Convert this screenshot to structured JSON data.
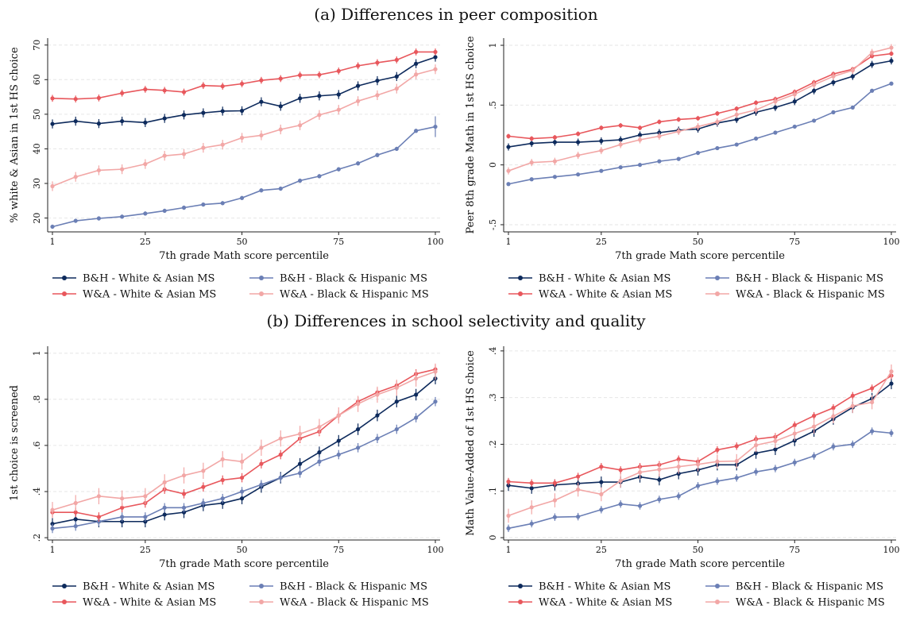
{
  "sections": {
    "a_title": "(a) Differences in peer composition",
    "b_title": "(b) Differences in school selectivity and quality"
  },
  "legend_entries": [
    {
      "label": "B&H - White & Asian MS",
      "color": "#0d2a5c"
    },
    {
      "label": "B&H - Black & Hispanic MS",
      "color": "#6b7fb5"
    },
    {
      "label": "W&A - White & Asian MS",
      "color": "#e8575c"
    },
    {
      "label": "W&A - Black & Hispanic MS",
      "color": "#f2a7a6"
    }
  ],
  "chart_data": [
    {
      "type": "line",
      "xlabel": "7th grade Math score percentile",
      "ylabel": "% white & Asian in 1st HS choice",
      "x": [
        1,
        7,
        13,
        19,
        25,
        30,
        35,
        40,
        45,
        50,
        55,
        60,
        65,
        70,
        75,
        80,
        85,
        90,
        95,
        100
      ],
      "xticks": [
        1,
        25,
        50,
        75,
        100
      ],
      "xtick_labels": [
        "1",
        "25",
        "50",
        "75",
        "100"
      ],
      "ylim": [
        16,
        72
      ],
      "yticks": [
        20,
        30,
        40,
        50,
        60,
        70
      ],
      "ytick_labels": [
        "20",
        "30",
        "40",
        "50",
        "60",
        "70"
      ],
      "series": [
        {
          "name": "B&H - White & Asian MS",
          "color": "#0d2a5c",
          "err": 1.3,
          "values": [
            47.2,
            48.0,
            47.3,
            48.0,
            47.6,
            48.8,
            49.8,
            50.4,
            50.9,
            51.0,
            53.6,
            52.3,
            54.6,
            55.3,
            55.7,
            58.2,
            59.7,
            60.9,
            64.6,
            66.5
          ]
        },
        {
          "name": "B&H - Black & Hispanic MS",
          "color": "#6b7fb5",
          "err": 0.6,
          "values": [
            17.5,
            19.2,
            19.9,
            20.4,
            21.3,
            22.1,
            23.0,
            23.9,
            24.3,
            25.8,
            28.0,
            28.5,
            30.8,
            32.1,
            34.1,
            35.8,
            38.2,
            40.0,
            45.2,
            46.4
          ],
          "err_last": 3.0
        },
        {
          "name": "W&A - White & Asian MS",
          "color": "#e8575c",
          "err": 1.0,
          "values": [
            54.6,
            54.4,
            54.7,
            56.1,
            57.2,
            56.9,
            56.4,
            58.3,
            58.1,
            58.8,
            59.8,
            60.3,
            61.3,
            61.4,
            62.5,
            64.0,
            64.9,
            65.7,
            68.0,
            68.0
          ]
        },
        {
          "name": "W&A - Black & Hispanic MS",
          "color": "#f2a7a6",
          "err": 1.4,
          "values": [
            29.2,
            31.9,
            33.8,
            34.1,
            35.6,
            38.0,
            38.5,
            40.3,
            41.2,
            43.2,
            43.9,
            45.6,
            46.8,
            49.8,
            51.3,
            53.8,
            55.5,
            57.4,
            61.5,
            63.0
          ]
        }
      ]
    },
    {
      "type": "line",
      "xlabel": "7th grade Math score percentile",
      "ylabel": "Peer 8th grade Math in 1st HS choice",
      "x": [
        1,
        7,
        13,
        19,
        25,
        30,
        35,
        40,
        45,
        50,
        55,
        60,
        65,
        70,
        75,
        80,
        85,
        90,
        95,
        100
      ],
      "xticks": [
        1,
        25,
        50,
        75,
        100
      ],
      "xtick_labels": [
        "1",
        "25",
        "50",
        "75",
        "100"
      ],
      "ylim": [
        -0.56,
        1.06
      ],
      "yticks": [
        -0.5,
        0,
        0.5,
        1
      ],
      "ytick_labels": [
        "-.5",
        "0",
        ".5",
        "1"
      ],
      "series": [
        {
          "name": "B&H - White & Asian MS",
          "color": "#0d2a5c",
          "err": 0.03,
          "values": [
            0.15,
            0.18,
            0.19,
            0.19,
            0.2,
            0.21,
            0.25,
            0.27,
            0.29,
            0.3,
            0.35,
            0.38,
            0.44,
            0.48,
            0.53,
            0.62,
            0.69,
            0.74,
            0.84,
            0.87
          ]
        },
        {
          "name": "B&H - Black & Hispanic MS",
          "color": "#6b7fb5",
          "err": 0.015,
          "values": [
            -0.16,
            -0.12,
            -0.1,
            -0.08,
            -0.05,
            -0.02,
            0.0,
            0.03,
            0.05,
            0.1,
            0.14,
            0.17,
            0.22,
            0.27,
            0.32,
            0.37,
            0.44,
            0.48,
            0.62,
            0.68
          ]
        },
        {
          "name": "W&A - White & Asian MS",
          "color": "#e8575c",
          "err": 0.02,
          "values": [
            0.24,
            0.22,
            0.23,
            0.26,
            0.31,
            0.33,
            0.31,
            0.36,
            0.38,
            0.39,
            0.43,
            0.47,
            0.52,
            0.55,
            0.61,
            0.69,
            0.76,
            0.8,
            0.91,
            0.93
          ]
        },
        {
          "name": "W&A - Black & Hispanic MS",
          "color": "#f2a7a6",
          "err": 0.03,
          "values": [
            -0.05,
            0.02,
            0.03,
            0.08,
            0.12,
            0.17,
            0.21,
            0.24,
            0.28,
            0.32,
            0.36,
            0.42,
            0.46,
            0.53,
            0.59,
            0.67,
            0.74,
            0.79,
            0.94,
            0.98
          ]
        }
      ]
    },
    {
      "type": "line",
      "xlabel": "7th grade Math score percentile",
      "ylabel": "1st choice is screened",
      "x": [
        1,
        7,
        13,
        19,
        25,
        30,
        35,
        40,
        45,
        50,
        55,
        60,
        65,
        70,
        75,
        80,
        85,
        90,
        95,
        100
      ],
      "xticks": [
        1,
        25,
        50,
        75,
        100
      ],
      "xtick_labels": [
        "1",
        "25",
        "50",
        "75",
        "100"
      ],
      "ylim": [
        0.19,
        1.03
      ],
      "yticks": [
        0.2,
        0.4,
        0.6,
        0.8,
        1
      ],
      "ytick_labels": [
        ".2",
        ".4",
        ".6",
        ".8",
        "1"
      ],
      "series": [
        {
          "name": "B&H - White & Asian MS",
          "color": "#0d2a5c",
          "err": 0.025,
          "values": [
            0.26,
            0.28,
            0.27,
            0.27,
            0.27,
            0.3,
            0.31,
            0.34,
            0.35,
            0.37,
            0.42,
            0.46,
            0.52,
            0.57,
            0.62,
            0.67,
            0.73,
            0.79,
            0.82,
            0.89
          ]
        },
        {
          "name": "B&H - Black & Hispanic MS",
          "color": "#6b7fb5",
          "err": 0.02,
          "values": [
            0.24,
            0.25,
            0.27,
            0.29,
            0.29,
            0.33,
            0.33,
            0.35,
            0.37,
            0.4,
            0.43,
            0.46,
            0.48,
            0.53,
            0.56,
            0.59,
            0.63,
            0.67,
            0.72,
            0.79
          ]
        },
        {
          "name": "W&A - White & Asian MS",
          "color": "#e8575c",
          "err": 0.02,
          "values": [
            0.31,
            0.31,
            0.29,
            0.33,
            0.35,
            0.41,
            0.39,
            0.42,
            0.45,
            0.46,
            0.52,
            0.56,
            0.63,
            0.66,
            0.73,
            0.79,
            0.83,
            0.86,
            0.91,
            0.93
          ]
        },
        {
          "name": "W&A - Black & Hispanic MS",
          "color": "#f2a7a6",
          "err": 0.035,
          "values": [
            0.32,
            0.35,
            0.38,
            0.37,
            0.38,
            0.44,
            0.47,
            0.49,
            0.54,
            0.53,
            0.59,
            0.63,
            0.65,
            0.68,
            0.73,
            0.78,
            0.82,
            0.85,
            0.89,
            0.92
          ]
        }
      ]
    },
    {
      "type": "line",
      "xlabel": "7th grade Math score percentile",
      "ylabel": "Math Value-Added of 1st HS choice",
      "x": [
        1,
        7,
        13,
        19,
        25,
        30,
        35,
        40,
        45,
        50,
        55,
        60,
        65,
        70,
        75,
        80,
        85,
        90,
        95,
        100
      ],
      "xticks": [
        1,
        25,
        50,
        75,
        100
      ],
      "xtick_labels": [
        "1",
        "25",
        "50",
        "75",
        "100"
      ],
      "ylim": [
        -0.005,
        0.41
      ],
      "yticks": [
        0,
        0.1,
        0.2,
        0.3,
        0.4
      ],
      "ytick_labels": [
        "0",
        ".1",
        ".2",
        ".3",
        ".4"
      ],
      "series": [
        {
          "name": "B&H - White & Asian MS",
          "color": "#0d2a5c",
          "err": 0.012,
          "values": [
            0.112,
            0.106,
            0.113,
            0.116,
            0.119,
            0.119,
            0.13,
            0.124,
            0.137,
            0.145,
            0.156,
            0.156,
            0.181,
            0.189,
            0.208,
            0.228,
            0.254,
            0.279,
            0.298,
            0.33
          ]
        },
        {
          "name": "B&H - Black & Hispanic MS",
          "color": "#6b7fb5",
          "err": 0.008,
          "values": [
            0.02,
            0.03,
            0.044,
            0.045,
            0.06,
            0.072,
            0.068,
            0.082,
            0.089,
            0.111,
            0.121,
            0.128,
            0.141,
            0.148,
            0.161,
            0.175,
            0.195,
            0.2,
            0.228,
            0.224
          ]
        },
        {
          "name": "W&A - White & Asian MS",
          "color": "#e8575c",
          "err": 0.008,
          "values": [
            0.12,
            0.117,
            0.117,
            0.131,
            0.152,
            0.145,
            0.152,
            0.156,
            0.168,
            0.163,
            0.188,
            0.196,
            0.211,
            0.216,
            0.241,
            0.261,
            0.278,
            0.304,
            0.32,
            0.347
          ]
        },
        {
          "name": "W&A - Black & Hispanic MS",
          "color": "#f2a7a6",
          "err": 0.015,
          "values": [
            0.047,
            0.065,
            0.08,
            0.103,
            0.093,
            0.122,
            0.14,
            0.146,
            0.152,
            0.157,
            0.163,
            0.164,
            0.198,
            0.207,
            0.223,
            0.238,
            0.26,
            0.282,
            0.29,
            0.356
          ]
        }
      ]
    }
  ]
}
